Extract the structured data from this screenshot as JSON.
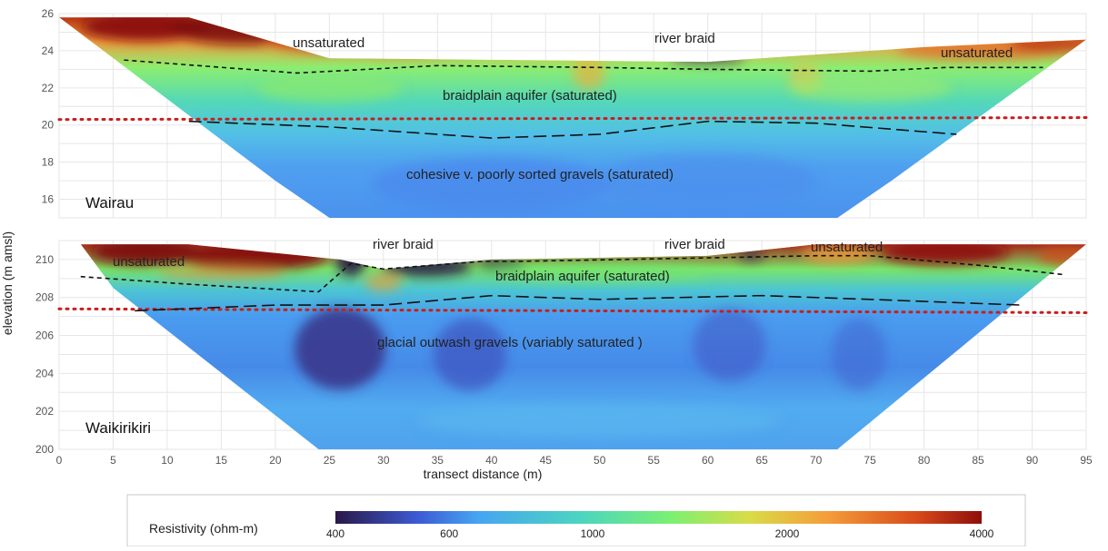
{
  "chart_data": [
    {
      "type": "heatmap",
      "panel": "Wairau",
      "ylabel": "elevation (m amsl)",
      "x_ticks": [
        0,
        5,
        10,
        15,
        20,
        25,
        30,
        35,
        40,
        45,
        50,
        55,
        60,
        65,
        70,
        75,
        80,
        85,
        90,
        95
      ],
      "y_ticks": [
        16,
        18,
        20,
        22,
        24,
        26
      ],
      "xlim": [
        0,
        95
      ],
      "ylim": [
        15,
        26
      ],
      "grid": true,
      "section_outline": [
        [
          0,
          25.8
        ],
        [
          12,
          25.8
        ],
        [
          25,
          23.6
        ],
        [
          60,
          23.4
        ],
        [
          80,
          24.2
        ],
        [
          95,
          24.6
        ],
        [
          77,
          17
        ],
        [
          72,
          15
        ],
        [
          25,
          15
        ],
        [
          20,
          17
        ]
      ],
      "water_table_dotted": [
        [
          0,
          20.3
        ],
        [
          95,
          20.4
        ]
      ],
      "saturation_boundary_short_dash": [
        [
          6,
          23.5
        ],
        [
          22,
          22.8
        ],
        [
          35,
          23.2
        ],
        [
          50,
          23.1
        ],
        [
          60,
          23.0
        ],
        [
          75,
          22.9
        ],
        [
          82,
          23.1
        ],
        [
          91,
          23.1
        ]
      ],
      "aquifer_base_long_dash": [
        [
          12,
          20.2
        ],
        [
          25,
          19.9
        ],
        [
          40,
          19.3
        ],
        [
          50,
          19.5
        ],
        [
          60,
          20.2
        ],
        [
          70,
          20.1
        ],
        [
          83,
          19.5
        ]
      ],
      "annotations": [
        "unsaturated",
        "river braid",
        "unsaturated",
        "braidplain aquifer (saturated)",
        "cohesive v. poorly sorted gravels (saturated)"
      ],
      "site_label": "Wairau"
    },
    {
      "type": "heatmap",
      "panel": "Waikirikiri",
      "xlabel": "transect distance (m)",
      "ylabel": "elevation (m amsl)",
      "x_ticks": [
        0,
        5,
        10,
        15,
        20,
        25,
        30,
        35,
        40,
        45,
        50,
        55,
        60,
        65,
        70,
        75,
        80,
        85,
        90,
        95
      ],
      "x_tick_labels": [
        "0",
        "5",
        "10",
        "15",
        "20",
        "25",
        "30",
        "35",
        "40",
        "45",
        "50",
        "55",
        "60",
        "65",
        "70",
        "75",
        "80",
        "85",
        "90",
        "95"
      ],
      "y_ticks": [
        200,
        202,
        204,
        206,
        208,
        210
      ],
      "xlim": [
        0,
        95
      ],
      "ylim": [
        200,
        211
      ],
      "grid": true,
      "section_outline": [
        [
          2,
          210.8
        ],
        [
          12,
          210.8
        ],
        [
          26,
          210.0
        ],
        [
          30,
          209.5
        ],
        [
          40,
          210.0
        ],
        [
          60,
          210.2
        ],
        [
          70,
          210.8
        ],
        [
          95,
          210.8
        ],
        [
          72,
          200
        ],
        [
          24,
          200
        ],
        [
          5,
          208.5
        ]
      ],
      "water_table_dotted": [
        [
          0,
          207.4
        ],
        [
          95,
          207.2
        ]
      ],
      "saturation_boundary_short_dash": [
        [
          2,
          209.1
        ],
        [
          12,
          208.7
        ],
        [
          24,
          208.3
        ],
        [
          27,
          209.8
        ],
        [
          30,
          209.5
        ],
        [
          39,
          209.9
        ],
        [
          42,
          209.9
        ],
        [
          52,
          210.0
        ],
        [
          70,
          210.2
        ],
        [
          75,
          210.2
        ],
        [
          85,
          209.7
        ],
        [
          93,
          209.2
        ]
      ],
      "aquifer_base_long_dash": [
        [
          7,
          207.3
        ],
        [
          20,
          207.6
        ],
        [
          30,
          207.6
        ],
        [
          40,
          208.1
        ],
        [
          50,
          207.9
        ],
        [
          65,
          208.1
        ],
        [
          75,
          207.9
        ],
        [
          89,
          207.6
        ]
      ],
      "annotations": [
        "unsaturated",
        "river braid",
        "river braid",
        "unsaturated",
        "braidplain aquifer (saturated)",
        "glacial outwash gravels (variably saturated )"
      ],
      "site_label": "Waikirikiri"
    }
  ],
  "colorbar": {
    "title": "Resistivity (ohm-m)",
    "tick_values": [
      400,
      600,
      1000,
      2000,
      4000
    ],
    "tick_labels": [
      "400",
      "600",
      "1000",
      "2000",
      "4000"
    ],
    "colors": [
      "#2a1848",
      "#3d5cd6",
      "#47a4f2",
      "#4cd5c0",
      "#7cf072",
      "#d8dc48",
      "#f59e3a",
      "#d84a1a",
      "#8e0e0a"
    ]
  },
  "labels": {
    "top_unsat_left": "unsaturated",
    "top_river": "river braid",
    "top_unsat_right": "unsaturated",
    "top_aquifer": "braidplain aquifer (saturated)",
    "top_gravels": "cohesive v. poorly sorted gravels (saturated)",
    "top_site": "Wairau",
    "bot_unsat_left": "unsaturated",
    "bot_river1": "river braid",
    "bot_river2": "river braid",
    "bot_unsat_right": "unsaturated",
    "bot_aquifer": "braidplain aquifer (saturated)",
    "bot_gravels": "glacial outwash gravels (variably saturated )",
    "bot_site": "Waikirikiri",
    "y_axis_title": "elevation (m amsl)",
    "x_axis_title": "transect distance (m)",
    "cb_title": "Resistivity (ohm-m)"
  }
}
